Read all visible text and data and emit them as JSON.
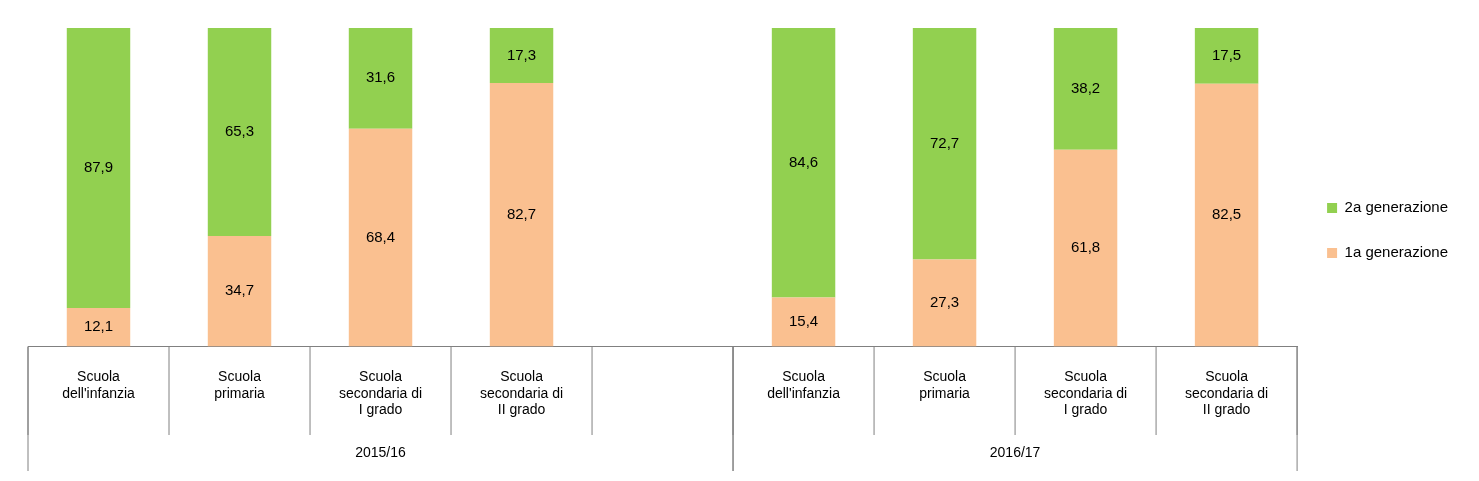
{
  "chart_data": {
    "type": "bar",
    "stacked": true,
    "categories": [
      "Scuola dell'infanzia",
      "Scuola primaria",
      "Scuola secondaria di I grado",
      "Scuola secondaria di II grado",
      null,
      "Scuola dell'infanzia",
      "Scuola primaria",
      "Scuola secondaria di I grado",
      "Scuola secondaria di II grado"
    ],
    "series": [
      {
        "name": "1a generazione",
        "color": "#fac090",
        "values": [
          12.1,
          34.7,
          68.4,
          82.7,
          null,
          15.4,
          27.3,
          61.8,
          82.5
        ],
        "value_labels": [
          "12,1",
          "34,7",
          "68,4",
          "82,7",
          null,
          "15,4",
          "27,3",
          "61,8",
          "82,5"
        ]
      },
      {
        "name": "2a generazione",
        "color": "#92d050",
        "values": [
          87.9,
          65.3,
          31.6,
          17.3,
          null,
          84.6,
          72.7,
          38.2,
          17.5
        ],
        "value_labels": [
          "87,9",
          "65,3",
          "31,6",
          "17,3",
          null,
          "84,6",
          "72,7",
          "38,2",
          "17,5"
        ]
      }
    ],
    "legend": "right",
    "annotations": [
      "2015/16",
      "2016/17"
    ]
  }
}
